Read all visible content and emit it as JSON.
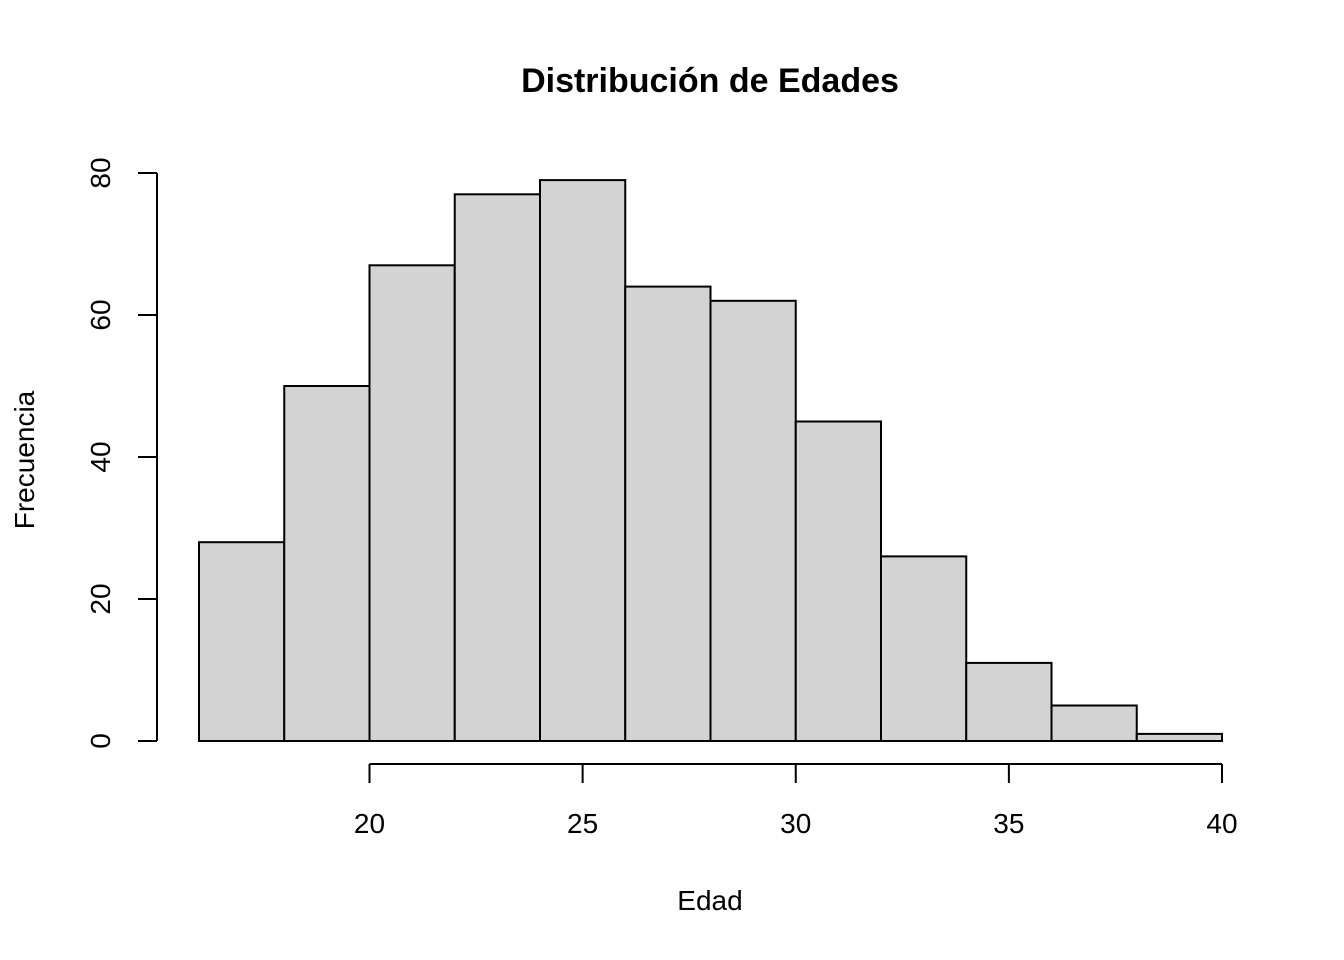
{
  "chart_data": {
    "type": "bar",
    "title": "Distribución de Edades",
    "xlabel": "Edad",
    "ylabel": "Frecuencia",
    "bins": [
      {
        "x0": 16,
        "x1": 18,
        "count": 28
      },
      {
        "x0": 18,
        "x1": 20,
        "count": 50
      },
      {
        "x0": 20,
        "x1": 22,
        "count": 67
      },
      {
        "x0": 22,
        "x1": 24,
        "count": 77
      },
      {
        "x0": 24,
        "x1": 26,
        "count": 79
      },
      {
        "x0": 26,
        "x1": 28,
        "count": 64
      },
      {
        "x0": 28,
        "x1": 30,
        "count": 62
      },
      {
        "x0": 30,
        "x1": 32,
        "count": 45
      },
      {
        "x0": 32,
        "x1": 34,
        "count": 26
      },
      {
        "x0": 34,
        "x1": 36,
        "count": 11
      },
      {
        "x0": 36,
        "x1": 38,
        "count": 5
      },
      {
        "x0": 38,
        "x1": 40,
        "count": 1
      }
    ],
    "xlim": [
      16,
      40
    ],
    "ylim": [
      0,
      80
    ],
    "xticks": [
      20,
      25,
      30,
      35,
      40
    ],
    "yticks": [
      0,
      20,
      40,
      60,
      80
    ],
    "grid": false,
    "bar_fill": "#d3d3d3",
    "bar_stroke": "#000000"
  }
}
